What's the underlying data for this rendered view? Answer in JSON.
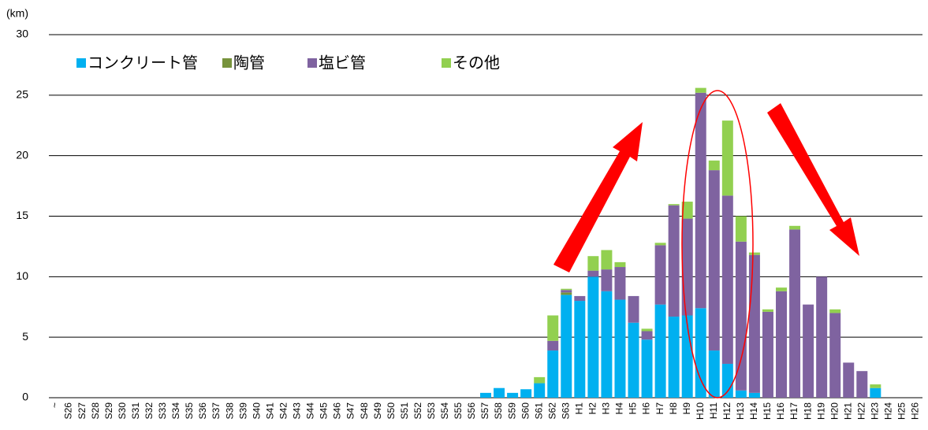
{
  "chart_data": {
    "type": "stacked_bar",
    "y_label": "(km)",
    "categories": [
      "~",
      "S26",
      "S27",
      "S28",
      "S29",
      "S30",
      "S31",
      "S32",
      "S33",
      "S34",
      "S35",
      "S36",
      "S37",
      "S38",
      "S39",
      "S40",
      "S41",
      "S42",
      "S43",
      "S44",
      "S45",
      "S46",
      "S47",
      "S48",
      "S49",
      "S50",
      "S51",
      "S52",
      "S53",
      "S54",
      "S55",
      "S56",
      "S57",
      "S58",
      "S59",
      "S60",
      "S61",
      "S62",
      "S63",
      "H1",
      "H2",
      "H3",
      "H4",
      "H5",
      "H6",
      "H7",
      "H8",
      "H9",
      "H10",
      "H11",
      "H12",
      "H13",
      "H14",
      "H15",
      "H16",
      "H17",
      "H18",
      "H19",
      "H20",
      "H21",
      "H22",
      "H23",
      "H24",
      "H25",
      "H26"
    ],
    "series": [
      {
        "name": "コンクリート管",
        "color": "#00b0f0",
        "values": [
          0,
          0,
          0,
          0,
          0,
          0,
          0,
          0,
          0,
          0,
          0,
          0,
          0,
          0,
          0,
          0,
          0,
          0,
          0,
          0,
          0,
          0,
          0,
          0,
          0,
          0,
          0,
          0,
          0,
          0,
          0,
          0,
          0.4,
          0.8,
          0.4,
          0.7,
          1.2,
          3.9,
          8.5,
          8.0,
          10.0,
          8.8,
          8.1,
          6.2,
          4.8,
          7.7,
          6.7,
          6.8,
          7.4,
          3.9,
          2.8,
          0.6,
          0.4,
          0,
          0,
          0,
          0,
          0,
          0,
          0,
          0,
          0.8,
          0,
          0,
          0
        ]
      },
      {
        "name": "陶管",
        "color": "#77933c",
        "values": [
          0,
          0,
          0,
          0,
          0,
          0,
          0,
          0,
          0,
          0,
          0,
          0,
          0,
          0,
          0,
          0,
          0,
          0,
          0,
          0,
          0,
          0,
          0,
          0,
          0,
          0,
          0,
          0,
          0,
          0,
          0,
          0,
          0,
          0,
          0,
          0,
          0,
          0,
          0.2,
          0,
          0,
          0,
          0,
          0,
          0,
          0,
          0,
          0,
          0,
          0,
          0,
          0,
          0,
          0,
          0,
          0,
          0,
          0,
          0,
          0,
          0,
          0,
          0,
          0,
          0
        ]
      },
      {
        "name": "塩ビ管",
        "color": "#7f63a0",
        "values": [
          0,
          0,
          0,
          0,
          0,
          0,
          0,
          0,
          0,
          0,
          0,
          0,
          0,
          0,
          0,
          0,
          0,
          0,
          0,
          0,
          0,
          0,
          0,
          0,
          0,
          0,
          0,
          0,
          0,
          0,
          0,
          0,
          0,
          0,
          0,
          0,
          0,
          0.8,
          0.2,
          0.4,
          0.5,
          1.8,
          2.7,
          2.2,
          0.7,
          4.9,
          9.2,
          8.0,
          17.8,
          14.9,
          13.9,
          12.3,
          11.4,
          7.1,
          8.8,
          13.9,
          7.7,
          10.0,
          7.0,
          2.9,
          2.2,
          0,
          0,
          0,
          0
        ]
      },
      {
        "name": "その他",
        "color": "#92d050",
        "values": [
          0,
          0,
          0,
          0,
          0,
          0,
          0,
          0,
          0,
          0,
          0,
          0,
          0,
          0,
          0,
          0,
          0,
          0,
          0,
          0,
          0,
          0,
          0,
          0,
          0,
          0,
          0,
          0,
          0,
          0,
          0,
          0,
          0,
          0,
          0,
          0,
          0.5,
          2.1,
          0.1,
          0,
          1.2,
          1.6,
          0.4,
          0,
          0.2,
          0.2,
          0.1,
          1.4,
          0.4,
          0.8,
          6.2,
          2.1,
          0.2,
          0.2,
          0.3,
          0.3,
          0,
          0,
          0.3,
          0,
          0,
          0.3,
          0,
          0,
          0
        ]
      }
    ],
    "ylim": [
      0,
      30
    ],
    "yticks": [
      0,
      5,
      10,
      15,
      20,
      25,
      30
    ],
    "grid": true
  }
}
